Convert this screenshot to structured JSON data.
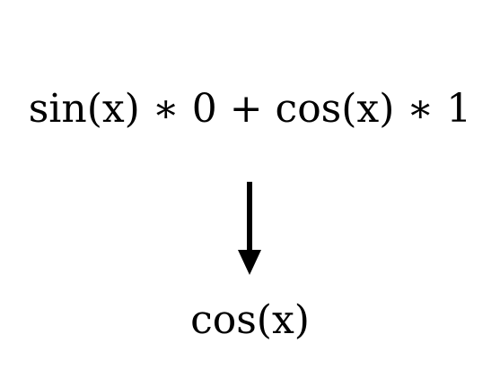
{
  "expression_input": "sin(x) ∗ 0 + cos(x) ∗ 1",
  "expression_output": "cos(x)",
  "colors": {
    "background": "#ffffff",
    "foreground": "#000000"
  },
  "icons": {
    "arrow": "down-arrow-icon"
  }
}
